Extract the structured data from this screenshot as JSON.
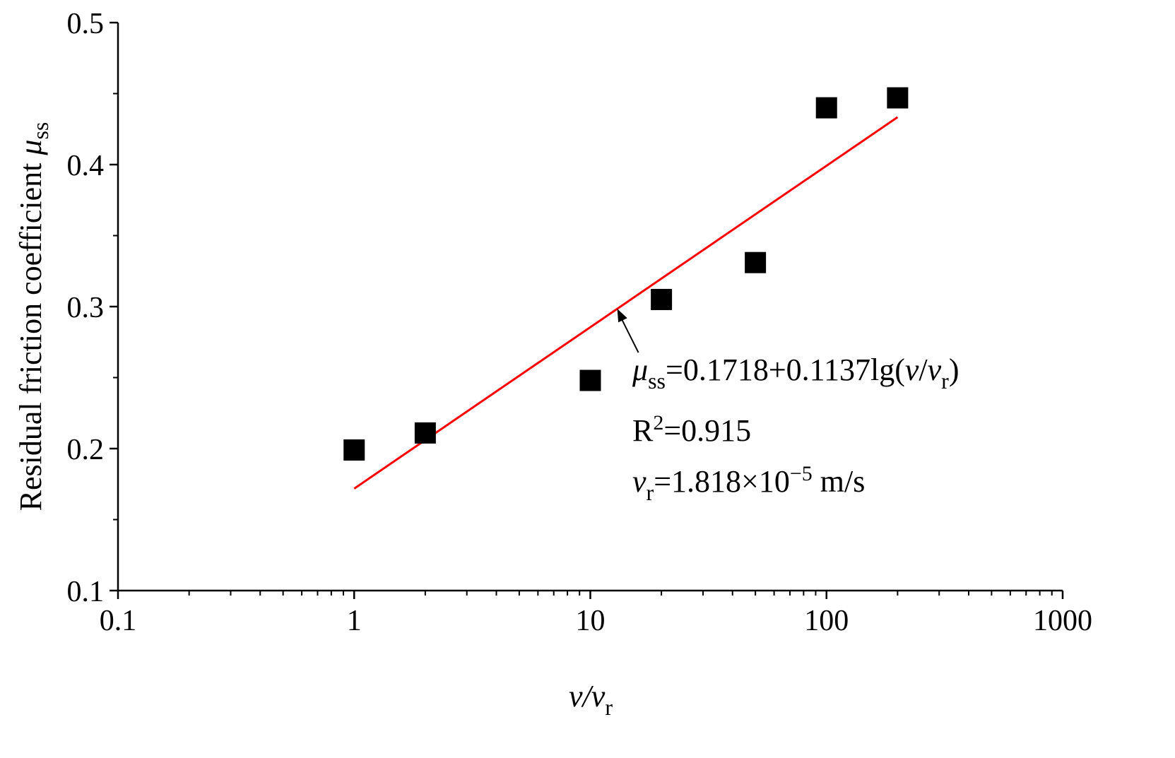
{
  "chart_data": {
    "type": "scatter",
    "x_scale": "log",
    "xlim": [
      0.1,
      1000
    ],
    "ylim": [
      0.1,
      0.5
    ],
    "x_ticks": [
      0.1,
      1,
      10,
      100,
      1000
    ],
    "x_tick_labels": [
      "0.1",
      "1",
      "10",
      "100",
      "1000"
    ],
    "y_ticks": [
      0.1,
      0.2,
      0.3,
      0.4,
      0.5
    ],
    "y_tick_labels": [
      "0.1",
      "0.2",
      "0.3",
      "0.4",
      "0.5"
    ],
    "y_minor_ticks": [
      0.15,
      0.25,
      0.35,
      0.45
    ],
    "xlabel": {
      "main": "v/v",
      "sub": "r"
    },
    "ylabel": {
      "main": "Residual friction coefficient ",
      "symbol": "μ",
      "sub": "ss"
    },
    "grid": false,
    "points": {
      "x": [
        1,
        2,
        10,
        20,
        50,
        100,
        200
      ],
      "y": [
        0.199,
        0.211,
        0.248,
        0.305,
        0.331,
        0.44,
        0.447
      ],
      "marker": "square",
      "color": "#000000"
    },
    "fit": {
      "x_range": [
        1,
        200
      ],
      "intercept": 0.1718,
      "slope": 0.1137,
      "color": "#ff0000"
    },
    "annotation": {
      "equation": {
        "symbol": "μ",
        "sub": "ss",
        "rhs": "=0.1718+0.1137lg(",
        "v1": "v",
        "slash": "/",
        "v2": "v",
        "v2sub": "r",
        "close": ")"
      },
      "r2": {
        "base": "R",
        "sup": "2",
        "rest": "=0.915"
      },
      "vr": {
        "symbol": "v",
        "sub": "r",
        "rest": "=1.818×10",
        "sup": "−5",
        "unit": " m/s"
      },
      "arrow_points_to_x": 13
    }
  }
}
